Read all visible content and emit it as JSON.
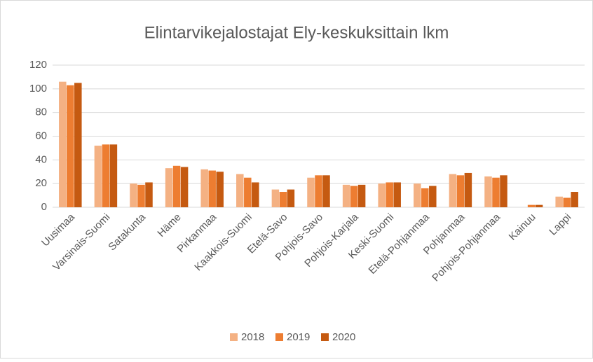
{
  "chart_data": {
    "type": "bar",
    "title": "Elintarvikejalostajat Ely-keskuksittain lkm",
    "categories": [
      "Uusimaa",
      "Varsinais-Suomi",
      "Satakunta",
      "Häme",
      "Pirkanmaa",
      "Kaakkois-Suomi",
      "Etelä-Savo",
      "Pohjois-Savo",
      "Pohjois-Karjala",
      "Keski-Suomi",
      "Etelä-Pohjanmaa",
      "Pohjanmaa",
      "Pohjois-Pohjanmaa",
      "Kainuu",
      "Lappi"
    ],
    "series": [
      {
        "name": "2018",
        "color": "#f4b183",
        "values": [
          106,
          52,
          20,
          33,
          32,
          28,
          15,
          25,
          19,
          20,
          20,
          28,
          26,
          0,
          9
        ]
      },
      {
        "name": "2019",
        "color": "#ed7d31",
        "values": [
          103,
          53,
          19,
          35,
          31,
          25,
          13,
          27,
          18,
          21,
          16,
          27,
          25,
          2,
          8
        ]
      },
      {
        "name": "2020",
        "color": "#c55a11",
        "values": [
          105,
          53,
          21,
          34,
          30,
          21,
          15,
          27,
          19,
          21,
          18,
          29,
          27,
          2,
          13
        ]
      }
    ],
    "ylim": [
      0,
      120
    ],
    "yticks": [
      0,
      20,
      40,
      60,
      80,
      100,
      120
    ],
    "grid": true,
    "legend": "bottom"
  }
}
